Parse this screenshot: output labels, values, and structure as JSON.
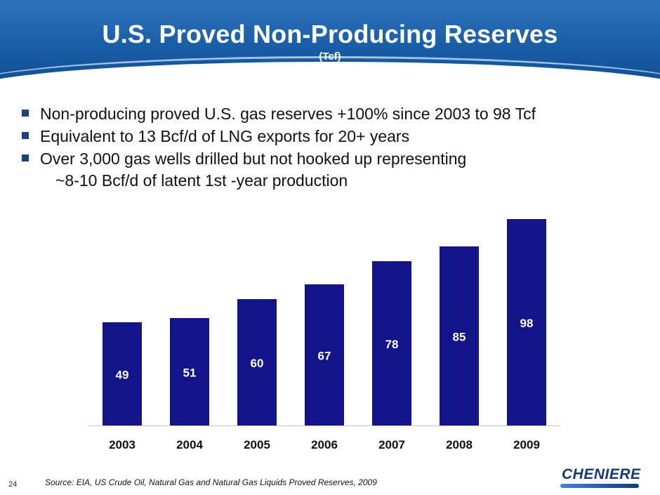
{
  "header": {
    "title": "U.S. Proved Non-Producing Reserves",
    "subtitle": "(Tcf)"
  },
  "bullets": [
    "Non-producing proved U.S. gas reserves +100% since 2003 to 98 Tcf",
    "Equivalent to 13 Bcf/d of LNG exports for 20+ years",
    "Over 3,000 gas wells drilled but not hooked up representing"
  ],
  "bullet_continuation": "~8-10 Bcf/d of latent 1st -year production",
  "chart_data": {
    "type": "bar",
    "categories": [
      "2003",
      "2004",
      "2005",
      "2006",
      "2007",
      "2008",
      "2009"
    ],
    "values": [
      49,
      51,
      60,
      67,
      78,
      85,
      98
    ],
    "title": "U.S. Proved Non-Producing Reserves",
    "subtitle": "(Tcf)",
    "xlabel": "",
    "ylabel": "",
    "ylim": [
      0,
      100
    ],
    "grid": false,
    "bar_color": "#13148a",
    "label_color": "#ffffff"
  },
  "footer": {
    "source": "Source: EIA, US Crude Oil, Natural Gas and Natural Gas Liquids Proved Reserves, 2009",
    "page_number": "24",
    "logo_text": "CHENIERE"
  },
  "colors": {
    "header_blue": "#1a5ea8",
    "bullet_square": "#1c3f86",
    "logo_navy": "#16387b"
  }
}
